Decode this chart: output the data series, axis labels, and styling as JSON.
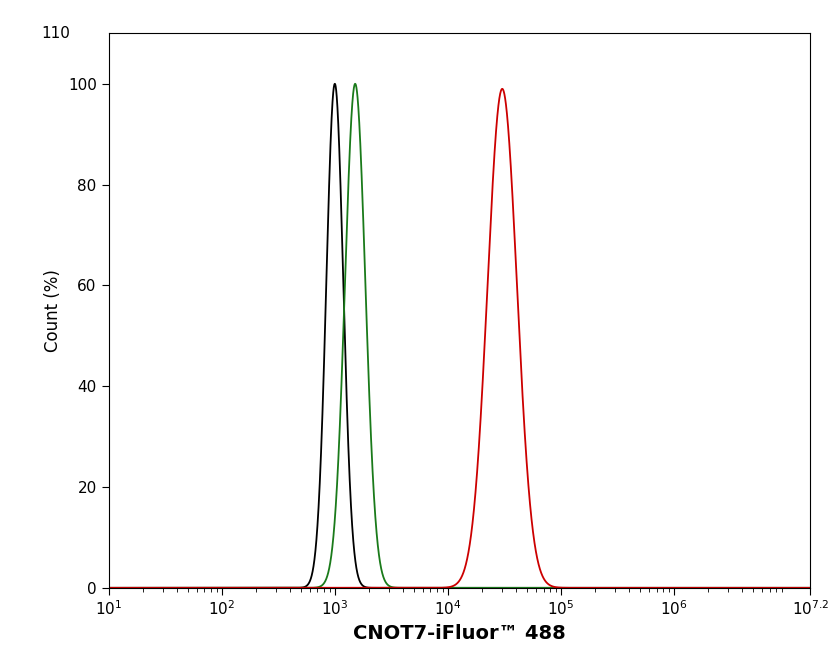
{
  "xlabel": "CNOT7-iFluor™ 488",
  "ylabel": "Count (%)",
  "xlim_log": [
    1,
    7.2
  ],
  "ylim": [
    0,
    110
  ],
  "yticks": [
    0,
    20,
    40,
    60,
    80,
    100
  ],
  "background_color": "#ffffff",
  "line_width": 1.3,
  "curves": [
    {
      "color": "#000000",
      "peak_log": 3.0,
      "sigma_log": 0.075,
      "peak_height": 100
    },
    {
      "color": "#1a7a1a",
      "peak_log": 3.18,
      "sigma_log": 0.09,
      "peak_height": 100
    },
    {
      "color": "#cc0000",
      "peak_log": 4.48,
      "sigma_log": 0.13,
      "peak_height": 99
    }
  ]
}
